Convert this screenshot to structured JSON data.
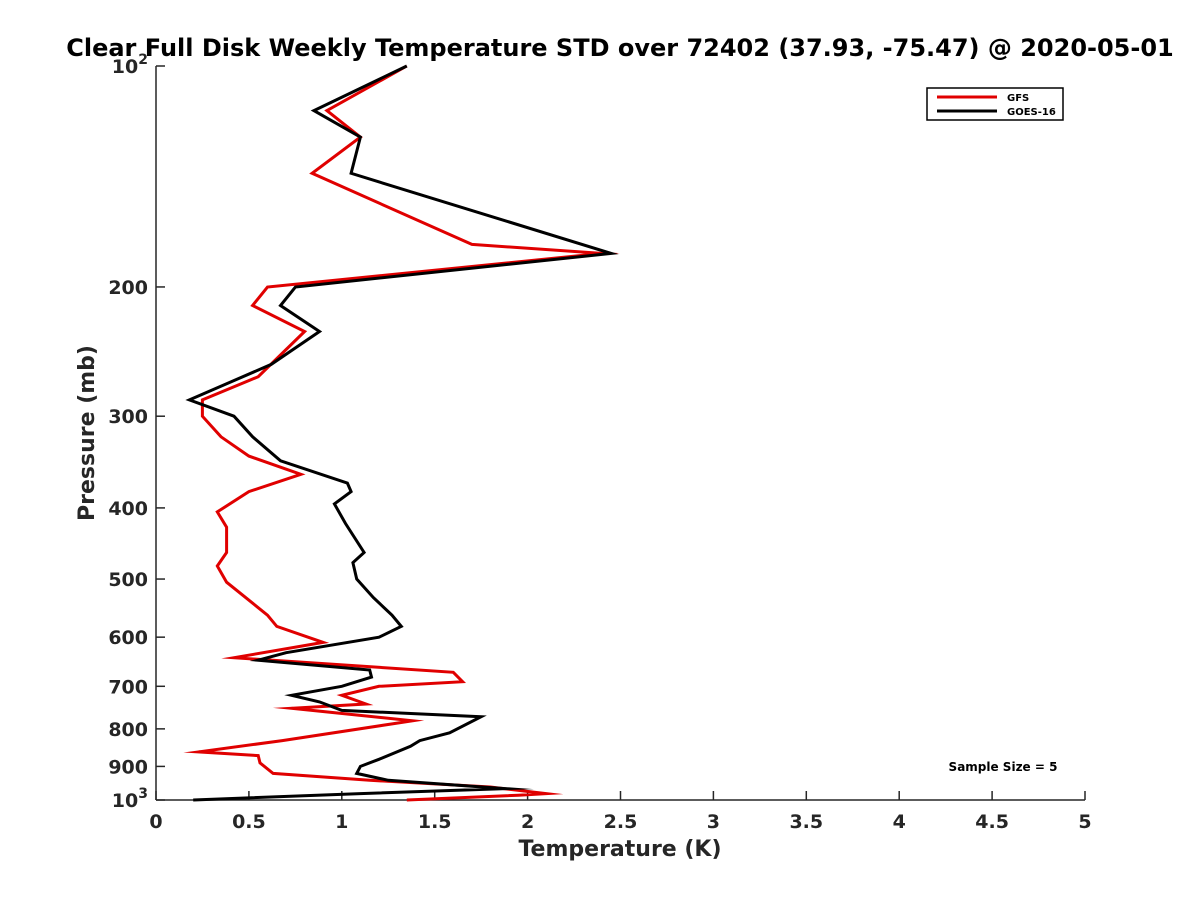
{
  "chart_data": {
    "type": "line",
    "title": "Clear Full Disk Weekly Temperature STD over 72402 (37.93, -75.47) @ 2020-05-01",
    "xlabel": "Temperature (K)",
    "ylabel": "Pressure (mb)",
    "xlim": [
      0,
      5
    ],
    "ylim": [
      100,
      1000
    ],
    "y_scale": "log",
    "y_reversed": true,
    "x_ticks": [
      0,
      0.5,
      1,
      1.5,
      2,
      2.5,
      3,
      3.5,
      4,
      4.5,
      5
    ],
    "x_tick_labels": [
      "0",
      "0.5",
      "1",
      "1.5",
      "2",
      "2.5",
      "3",
      "3.5",
      "4",
      "4.5",
      "5"
    ],
    "y_ticks": [
      {
        "value": 100,
        "base": "10",
        "exp": "2",
        "label": ""
      },
      {
        "value": 200,
        "label": "200"
      },
      {
        "value": 300,
        "label": "300"
      },
      {
        "value": 400,
        "label": "400"
      },
      {
        "value": 500,
        "label": "500"
      },
      {
        "value": 600,
        "label": "600"
      },
      {
        "value": 700,
        "label": "700"
      },
      {
        "value": 800,
        "label": "800"
      },
      {
        "value": 900,
        "label": "900"
      },
      {
        "value": 1000,
        "base": "10",
        "exp": "3",
        "label": ""
      }
    ],
    "legend_position": "top-right",
    "annotation": "Sample Size = 5",
    "series": [
      {
        "name": "GFS",
        "color": "#e00000",
        "points": [
          [
            1.35,
            100
          ],
          [
            0.92,
            115
          ],
          [
            1.1,
            125
          ],
          [
            0.84,
            140
          ],
          [
            1.7,
            175
          ],
          [
            2.4,
            180
          ],
          [
            0.6,
            200
          ],
          [
            0.52,
            212
          ],
          [
            0.8,
            230
          ],
          [
            0.55,
            265
          ],
          [
            0.25,
            285
          ],
          [
            0.25,
            300
          ],
          [
            0.35,
            320
          ],
          [
            0.5,
            340
          ],
          [
            0.78,
            360
          ],
          [
            0.5,
            380
          ],
          [
            0.33,
            405
          ],
          [
            0.38,
            425
          ],
          [
            0.38,
            460
          ],
          [
            0.33,
            480
          ],
          [
            0.38,
            505
          ],
          [
            0.6,
            560
          ],
          [
            0.65,
            580
          ],
          [
            0.9,
            610
          ],
          [
            0.42,
            640
          ],
          [
            1.6,
            670
          ],
          [
            1.65,
            690
          ],
          [
            1.2,
            700
          ],
          [
            1.0,
            720
          ],
          [
            1.13,
            740
          ],
          [
            0.73,
            750
          ],
          [
            1.38,
            780
          ],
          [
            0.68,
            830
          ],
          [
            0.23,
            860
          ],
          [
            0.55,
            870
          ],
          [
            0.56,
            890
          ],
          [
            0.63,
            920
          ],
          [
            1.15,
            940
          ],
          [
            1.8,
            960
          ],
          [
            2.1,
            980
          ],
          [
            1.95,
            985
          ],
          [
            1.35,
            1000
          ]
        ]
      },
      {
        "name": "GOES-16",
        "color": "#000000",
        "points": [
          [
            1.35,
            100
          ],
          [
            0.85,
            115
          ],
          [
            1.1,
            125
          ],
          [
            1.05,
            140
          ],
          [
            2.45,
            180
          ],
          [
            0.75,
            200
          ],
          [
            0.67,
            212
          ],
          [
            0.88,
            230
          ],
          [
            0.62,
            255
          ],
          [
            0.18,
            285
          ],
          [
            0.42,
            300
          ],
          [
            0.52,
            320
          ],
          [
            0.67,
            345
          ],
          [
            1.03,
            370
          ],
          [
            1.05,
            380
          ],
          [
            0.96,
            395
          ],
          [
            1.02,
            420
          ],
          [
            1.12,
            460
          ],
          [
            1.06,
            475
          ],
          [
            1.08,
            500
          ],
          [
            1.17,
            530
          ],
          [
            1.27,
            560
          ],
          [
            1.32,
            580
          ],
          [
            1.2,
            600
          ],
          [
            0.7,
            630
          ],
          [
            0.55,
            645
          ],
          [
            1.15,
            665
          ],
          [
            1.16,
            680
          ],
          [
            1.0,
            700
          ],
          [
            0.73,
            720
          ],
          [
            0.88,
            735
          ],
          [
            1.0,
            755
          ],
          [
            1.75,
            770
          ],
          [
            1.58,
            810
          ],
          [
            1.42,
            830
          ],
          [
            1.37,
            845
          ],
          [
            1.2,
            880
          ],
          [
            1.1,
            900
          ],
          [
            1.08,
            920
          ],
          [
            1.25,
            940
          ],
          [
            1.88,
            965
          ],
          [
            1.1,
            980
          ],
          [
            0.2,
            1000
          ]
        ]
      }
    ]
  }
}
